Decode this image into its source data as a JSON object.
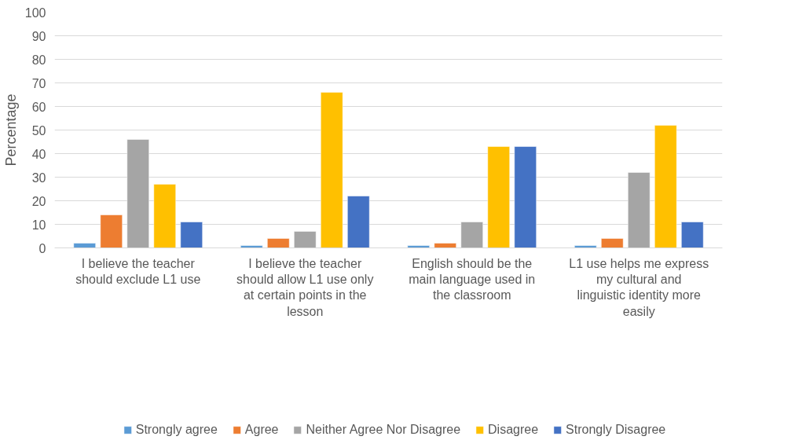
{
  "chart_data": {
    "type": "bar",
    "ylabel": "Percentage",
    "categories": [
      "I believe the teacher should exclude L1 use",
      "I believe the teacher should allow L1 use only at certain points in the lesson",
      "English should be the main language used in the classroom",
      "L1 use helps me express my cultural and linguistic identity more easily"
    ],
    "series": [
      {
        "name": "Strongly agree",
        "color": "#5b9bd5",
        "values": [
          2,
          1,
          1,
          1
        ]
      },
      {
        "name": "Agree",
        "color": "#ed7d31",
        "values": [
          14,
          4,
          2,
          4
        ]
      },
      {
        "name": "Neither Agree Nor Disagree",
        "color": "#a5a5a5",
        "values": [
          46,
          7,
          11,
          32
        ]
      },
      {
        "name": "Disagree",
        "color": "#ffc000",
        "values": [
          27,
          66,
          43,
          52
        ]
      },
      {
        "name": "Strongly Disagree",
        "color": "#4472c4",
        "values": [
          11,
          22,
          43,
          11
        ]
      }
    ],
    "ylim": [
      0,
      100
    ],
    "yticks": [
      0,
      10,
      20,
      30,
      40,
      50,
      60,
      70,
      80,
      90,
      100
    ],
    "grid": "y",
    "legend": "bottom"
  }
}
